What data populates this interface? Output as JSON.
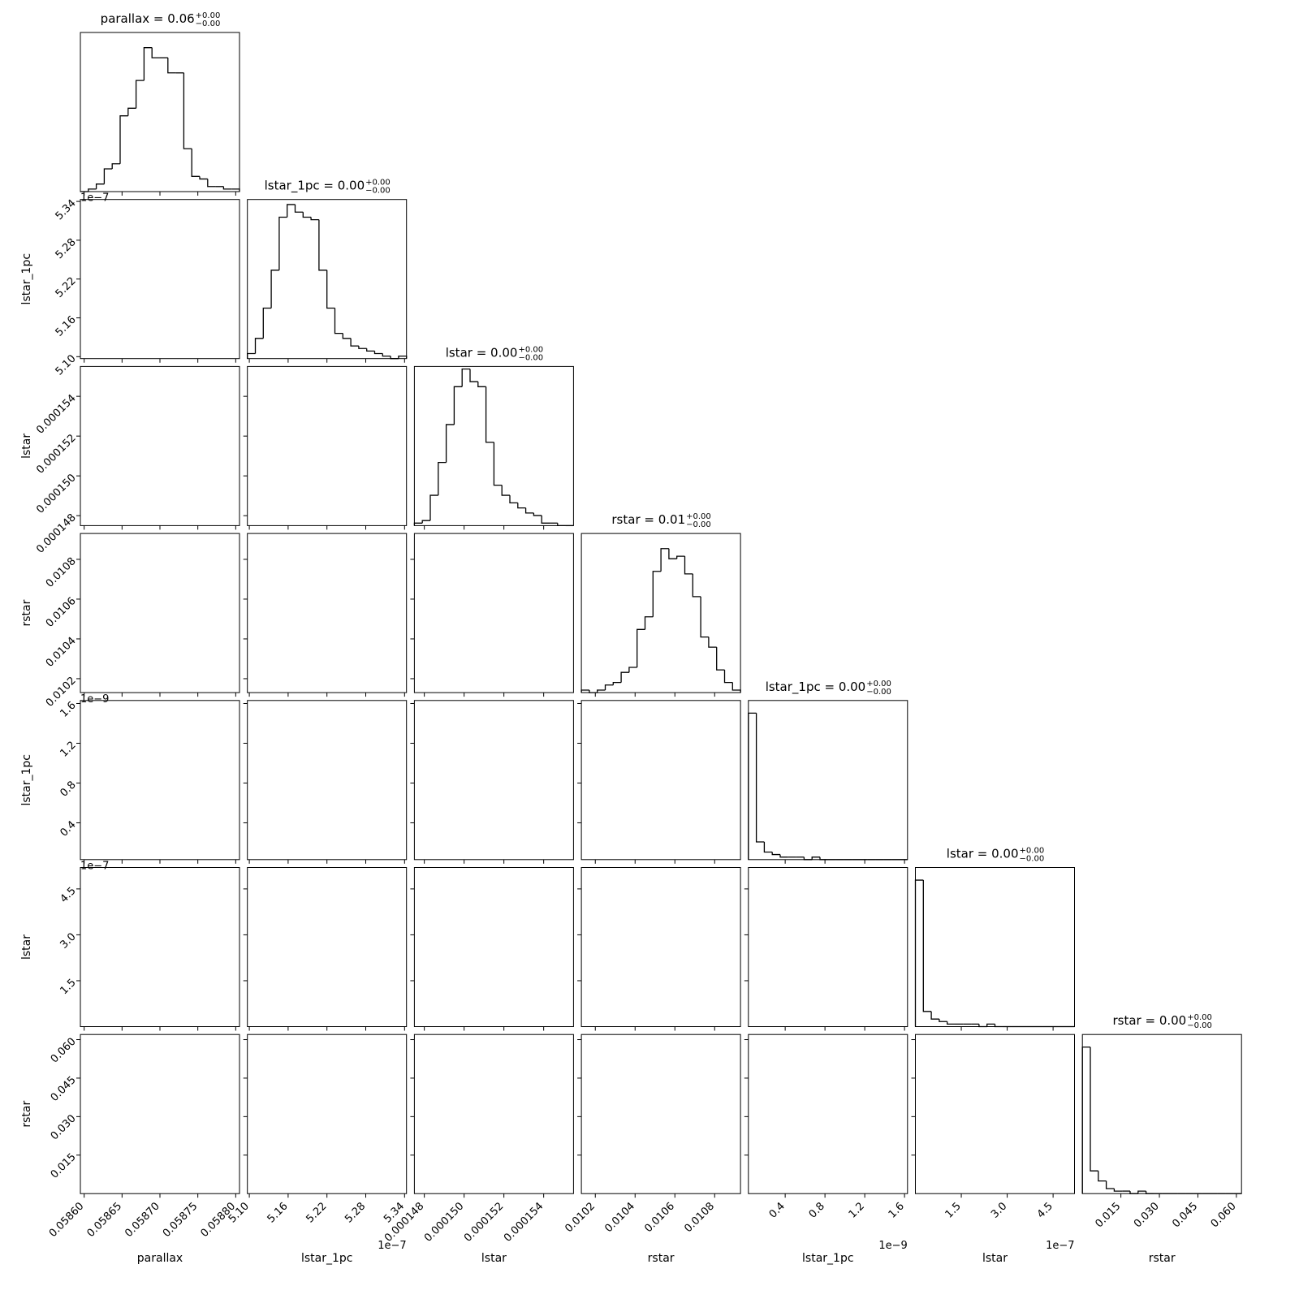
{
  "chart_data": {
    "type": "corner",
    "params": [
      {
        "name": "parallax",
        "title": "parallax = 0.06",
        "sup": "+0.00",
        "sub": "−0.00",
        "lim": [
          0.058595,
          0.058805
        ],
        "ticks": [
          {
            "value": 0.0586,
            "label": "0.05860"
          },
          0.05865,
          {
            "value": 0.0587,
            "label": "0.05870"
          },
          0.05875,
          {
            "value": 0.0588,
            "label": "0.05880"
          }
        ],
        "bins": [
          0.058595,
          0.0586055,
          0.058616,
          0.0586265,
          0.058637,
          0.0586475,
          0.058658,
          0.0586685,
          0.058679,
          0.0586895,
          0.0587,
          0.0587105,
          0.058721,
          0.0587315,
          0.058742,
          0.0587525,
          0.058763,
          0.0587735,
          0.058784,
          0.0587945,
          0.058805
        ],
        "counts": [
          0,
          1,
          3,
          9,
          11,
          30,
          33,
          44,
          57,
          53,
          53,
          47,
          47,
          17,
          6,
          5,
          2,
          2,
          1,
          1
        ],
        "hist_ylim": [
          0,
          63
        ]
      },
      {
        "name": "lstar_1pc",
        "title": "lstar_1pc = 0.00",
        "sup": "+0.00",
        "sub": "−0.00",
        "offset": "1e−7",
        "lim": [
          5.097,
          5.343
        ],
        "ticks": [
          {
            "value": 5.1,
            "label": "5.10"
          },
          5.16,
          5.22,
          5.28,
          5.34
        ],
        "bins": [
          5.097,
          5.1093,
          5.1216,
          5.1339,
          5.1462,
          5.1585,
          5.1708,
          5.1831,
          5.1954,
          5.2077,
          5.22,
          5.2323,
          5.2446,
          5.2569,
          5.2692,
          5.2815,
          5.2938,
          5.3061,
          5.3184,
          5.3307,
          5.343
        ],
        "counts": [
          2,
          8,
          20,
          35,
          56,
          61,
          58,
          56,
          55,
          35,
          20,
          10,
          8,
          5,
          4,
          3,
          2,
          1,
          0,
          1
        ],
        "hist_ylim": [
          0,
          63
        ]
      },
      {
        "name": "lstar",
        "title": "lstar = 0.00",
        "sup": "+0.00",
        "sub": "−0.00",
        "lim": [
          0.0001475,
          0.0001555
        ],
        "ticks": [
          0.000148,
          {
            "value": 0.00015,
            "label": "0.000150"
          },
          0.000152,
          0.000154
        ],
        "bins": [
          0.0001475,
          0.0001479,
          0.0001483,
          0.0001487,
          0.0001491,
          0.0001495,
          0.0001499,
          0.0001503,
          0.0001507,
          0.0001511,
          0.0001515,
          0.0001519,
          0.0001523,
          0.0001527,
          0.0001531,
          0.0001535,
          0.0001539,
          0.0001543,
          0.0001547,
          0.0001551,
          0.0001555
        ],
        "counts": [
          1,
          2,
          12,
          25,
          40,
          55,
          62,
          57,
          55,
          33,
          16,
          12,
          9,
          7,
          5,
          4,
          1,
          1,
          0,
          0
        ],
        "hist_ylim": [
          0,
          63
        ]
      },
      {
        "name": "rstar",
        "title": "rstar = 0.01",
        "sup": "+0.00",
        "sub": "−0.00",
        "lim": [
          0.01013,
          0.01093
        ],
        "ticks": [
          0.0102,
          0.0104,
          0.0106,
          0.0108
        ],
        "bins": [
          0.01013,
          0.01017,
          0.01021,
          0.01025,
          0.01029,
          0.01033,
          0.01037,
          0.01041,
          0.01045,
          0.01049,
          0.01053,
          0.01057,
          0.01061,
          0.01065,
          0.01069,
          0.01073,
          0.01077,
          0.01081,
          0.01085,
          0.01089,
          0.01093
        ],
        "counts": [
          1,
          0,
          1,
          3,
          4,
          8,
          10,
          25,
          30,
          48,
          57,
          53,
          54,
          47,
          38,
          22,
          18,
          9,
          4,
          1
        ],
        "hist_ylim": [
          0,
          63
        ]
      },
      {
        "name": "lstar_1pc",
        "title": "lstar_1pc = 0.00",
        "sup": "+0.00",
        "sub": "−0.00",
        "offset": "1e−9",
        "lim": [
          0.03,
          1.63
        ],
        "ticks": [
          0.4,
          0.8,
          1.2,
          1.6
        ],
        "bins": [
          0.03,
          0.11,
          0.19,
          0.27,
          0.35,
          0.43,
          0.51,
          0.59,
          0.67,
          0.75,
          0.83,
          0.91,
          0.99,
          1.07,
          1.15,
          1.23,
          1.31,
          1.39,
          1.47,
          1.55,
          1.63
        ],
        "counts": [
          58,
          7,
          3,
          2,
          1,
          1,
          1,
          0,
          1,
          0,
          0,
          0,
          0,
          0,
          0,
          0,
          0,
          0,
          0,
          0
        ],
        "hist_ylim": [
          0,
          63
        ]
      },
      {
        "name": "lstar",
        "title": "lstar = 0.00",
        "sup": "+0.00",
        "sub": "−0.00",
        "offset": "1e−7",
        "lim": [
          0,
          5.2
        ],
        "ticks": [
          1.5,
          {
            "value": 3,
            "label": "3.0"
          },
          4.5
        ],
        "bins": [
          0,
          0.26,
          0.52,
          0.78,
          1.04,
          1.3,
          1.56,
          1.82,
          2.08,
          2.34,
          2.6,
          2.86,
          3.12,
          3.38,
          3.64,
          3.9,
          4.16,
          4.42,
          4.68,
          4.94,
          5.2
        ],
        "counts": [
          58,
          6,
          3,
          2,
          1,
          1,
          1,
          1,
          0,
          1,
          0,
          0,
          0,
          0,
          0,
          0,
          0,
          0,
          0,
          0
        ],
        "hist_ylim": [
          0,
          63
        ]
      },
      {
        "name": "rstar",
        "title": "rstar = 0.00",
        "sup": "+0.00",
        "sub": "−0.00",
        "lim": [
          0,
          0.062
        ],
        "ticks": [
          0.015,
          {
            "value": 0.03,
            "label": "0.030"
          },
          0.045,
          {
            "value": 0.06,
            "label": "0.060"
          }
        ],
        "bins": [
          0,
          0.0031,
          0.0062,
          0.0093,
          0.0124,
          0.0155,
          0.0186,
          0.0217,
          0.0248,
          0.0279,
          0.031,
          0.0341,
          0.0372,
          0.0403,
          0.0434,
          0.0465,
          0.0496,
          0.0527,
          0.0558,
          0.0589,
          0.062
        ],
        "counts": [
          58,
          9,
          5,
          2,
          1,
          1,
          0,
          1,
          0,
          0,
          0,
          0,
          0,
          0,
          0,
          0,
          0,
          0,
          0,
          0
        ],
        "hist_ylim": [
          0,
          63
        ]
      }
    ]
  }
}
